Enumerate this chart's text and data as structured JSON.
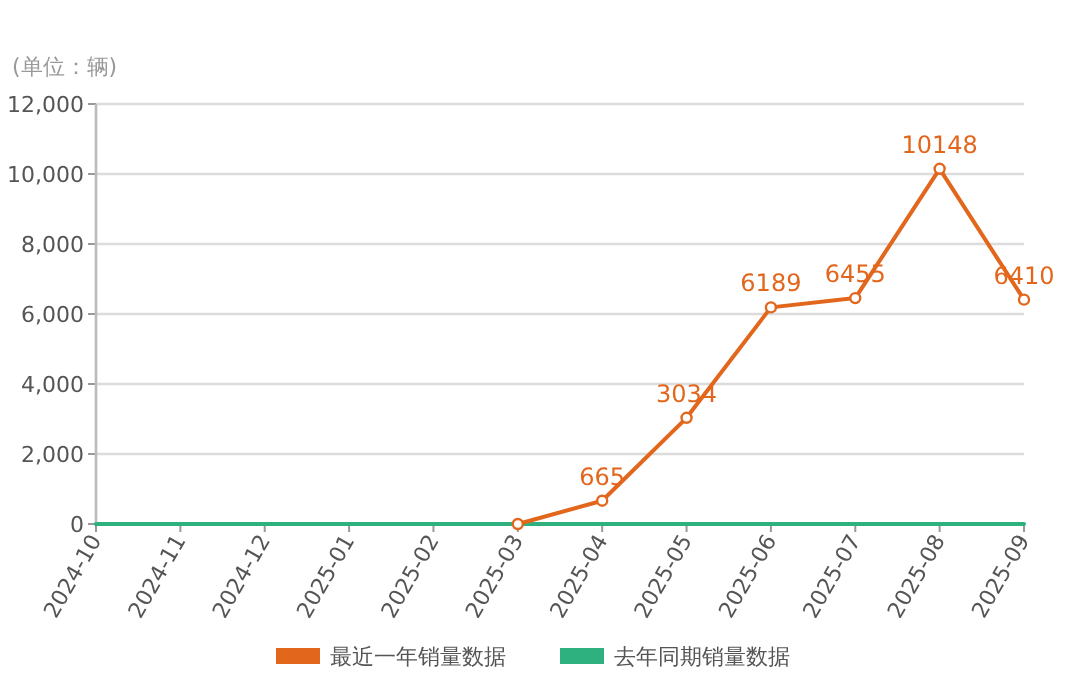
{
  "chart_data": {
    "type": "line",
    "ylabel": "(单位：辆)",
    "categories": [
      "2024-10",
      "2024-11",
      "2024-12",
      "2025-01",
      "2025-02",
      "2025-03",
      "2025-04",
      "2025-05",
      "2025-06",
      "2025-07",
      "2025-08",
      "2025-09"
    ],
    "series": [
      {
        "name": "最近一年销量数据",
        "color": "#e2671c",
        "marker": "circle",
        "values": [
          null,
          null,
          null,
          null,
          null,
          0,
          665,
          3034,
          6189,
          6455,
          10148,
          6410
        ],
        "value_labels": [
          null,
          null,
          null,
          null,
          null,
          null,
          "665",
          "3034",
          "6189",
          "6455",
          "10148",
          "6410"
        ]
      },
      {
        "name": "去年同期销量数据",
        "color": "#2fb07f",
        "marker": "none",
        "values": [
          0,
          0,
          0,
          0,
          0,
          0,
          0,
          0,
          0,
          0,
          0,
          0
        ]
      }
    ],
    "ylim": [
      0,
      12000
    ],
    "yticks": [
      0,
      {
        "value": 2000,
        "label": "2,000"
      },
      {
        "value": 4000,
        "label": "4,000"
      },
      {
        "value": 6000,
        "label": "6,000"
      },
      {
        "value": 8000,
        "label": "8,000"
      },
      {
        "value": 10000,
        "label": "10,000"
      },
      {
        "value": 12000,
        "label": "12,000"
      }
    ],
    "grid": "y",
    "legend": "bottom"
  }
}
